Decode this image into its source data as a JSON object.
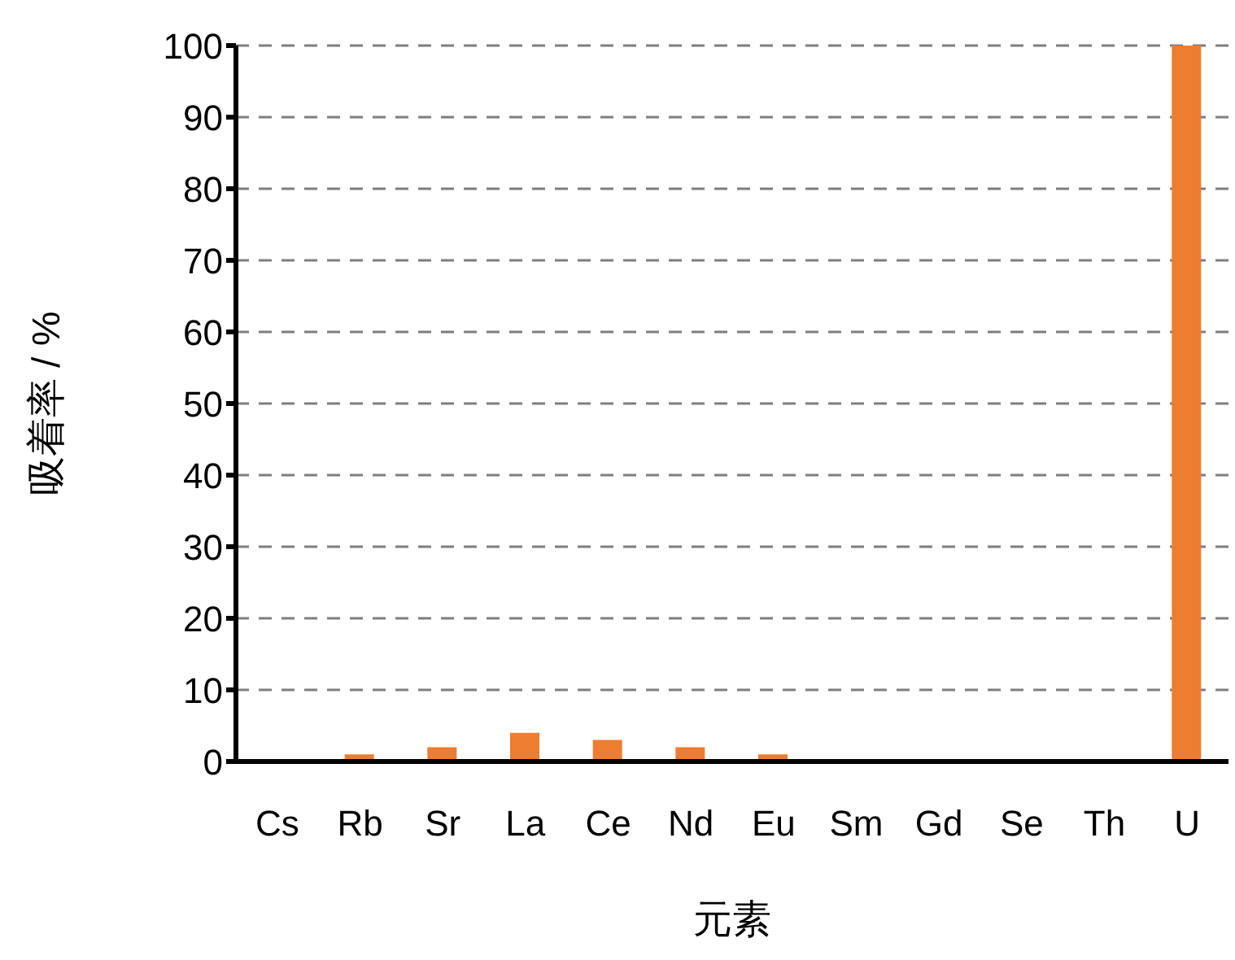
{
  "chart_data": {
    "type": "bar",
    "xlabel": "元素",
    "ylabel": "吸着率 / %",
    "categories": [
      "Cs",
      "Rb",
      "Sr",
      "La",
      "Ce",
      "Nd",
      "Eu",
      "Sm",
      "Gd",
      "Se",
      "Th",
      "U"
    ],
    "values": [
      0,
      1,
      2,
      4,
      3,
      2,
      1,
      0,
      0,
      0,
      0,
      100
    ],
    "color": "#ed7d31",
    "ylim": [
      0,
      100
    ],
    "yticks": [
      0,
      10,
      20,
      30,
      40,
      50,
      60,
      70,
      80,
      90,
      100
    ],
    "grid": "y"
  }
}
